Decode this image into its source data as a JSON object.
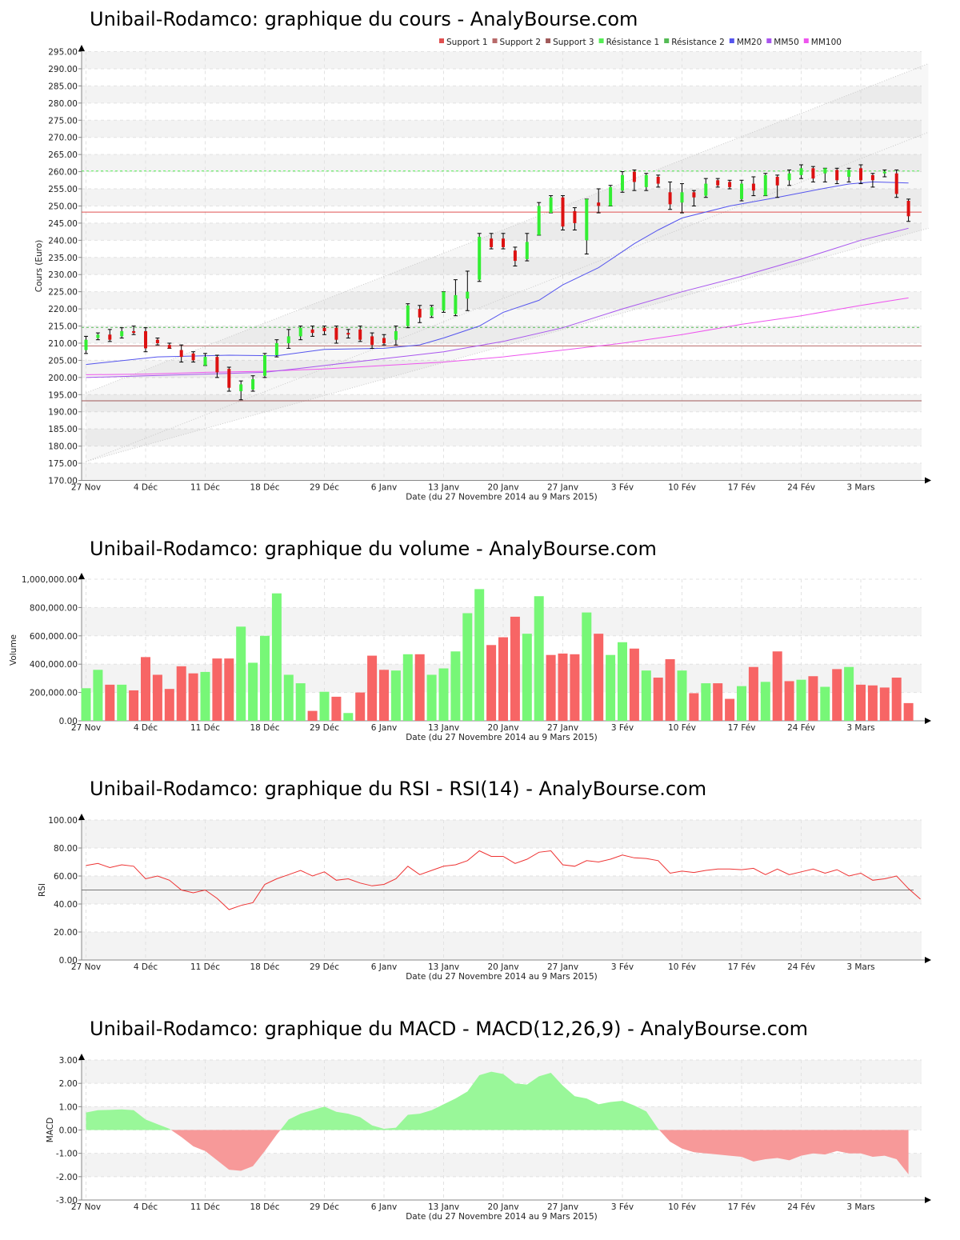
{
  "chart_data": [
    {
      "type": "candlestick",
      "title": "Unibail-Rodamco: graphique du cours - AnalyBourse.com",
      "xlabel": "Date (du 27 Novembre 2014 au 9 Mars 2015)",
      "ylabel": "Cours (Euro)",
      "ylim": [
        170,
        295
      ],
      "ystep": 5,
      "grid": true,
      "legend_position": "top-right",
      "x_ticks": [
        "27 Nov",
        "4 Déc",
        "11 Déc",
        "18 Déc",
        "29 Déc",
        "6 Janv",
        "13 Janv",
        "20 Janv",
        "27 Janv",
        "3 Fév",
        "10 Fév",
        "17 Fév",
        "24 Fév",
        "3 Mars"
      ],
      "x_tick_index": [
        0,
        5,
        10,
        15,
        20,
        25,
        30,
        35,
        40,
        45,
        50,
        55,
        60,
        65
      ],
      "legend": [
        {
          "label": "Support 1",
          "color": "#e05050"
        },
        {
          "label": "Support 2",
          "color": "#b86a6a"
        },
        {
          "label": "Support 3",
          "color": "#a05a5a"
        },
        {
          "label": "Résistance 1",
          "color": "#55ee55"
        },
        {
          "label": "Résistance 2",
          "color": "#55bb55"
        },
        {
          "label": "MM20",
          "color": "#5555ee"
        },
        {
          "label": "MM50",
          "color": "#a855ee"
        },
        {
          "label": "MM100",
          "color": "#ee55ee"
        }
      ],
      "levels": {
        "support1": 248.2,
        "support2": 209.2,
        "support3": 193.2,
        "resistance1": 260.2,
        "resistance2": 214.6
      },
      "colors": {
        "up": "#33ee33",
        "down": "#dd1111",
        "support1": "#e05050",
        "support2": "#b86a6a",
        "support3": "#a05a5a",
        "resistance1": "#55ee55",
        "resistance2": "#55bb55",
        "mm20": "#5555ee",
        "mm50": "#a855ee",
        "mm100": "#ee55ee",
        "channel": "#c8c8c8"
      },
      "channel": {
        "lower": [
          175.5,
          243.5
        ],
        "upper": [
          195.5,
          291.5
        ],
        "mid_upper": [
          175.5,
          271.5
        ]
      },
      "candles": [
        {
          "o": 208,
          "h": 212,
          "l": 207,
          "c": 211
        },
        {
          "o": 211.5,
          "h": 213,
          "l": 211,
          "c": 212.5
        },
        {
          "o": 212.5,
          "h": 214,
          "l": 210.5,
          "c": 211
        },
        {
          "o": 212,
          "h": 214.5,
          "l": 211.5,
          "c": 213.5
        },
        {
          "o": 213.5,
          "h": 215,
          "l": 212.5,
          "c": 213
        },
        {
          "o": 213.5,
          "h": 214.5,
          "l": 207.5,
          "c": 208.5
        },
        {
          "o": 211,
          "h": 211.5,
          "l": 209.5,
          "c": 210
        },
        {
          "o": 209.5,
          "h": 210,
          "l": 208.5,
          "c": 208.5
        },
        {
          "o": 208,
          "h": 209.5,
          "l": 204.5,
          "c": 206
        },
        {
          "o": 207,
          "h": 207.5,
          "l": 204.5,
          "c": 205
        },
        {
          "o": 203.5,
          "h": 207,
          "l": 203.5,
          "c": 206
        },
        {
          "o": 206,
          "h": 206.5,
          "l": 200,
          "c": 201.5
        },
        {
          "o": 202.5,
          "h": 203,
          "l": 196,
          "c": 197
        },
        {
          "o": 196,
          "h": 199,
          "l": 193.5,
          "c": 198
        },
        {
          "o": 196.5,
          "h": 200.5,
          "l": 196,
          "c": 199.5
        },
        {
          "o": 200.5,
          "h": 207,
          "l": 200,
          "c": 206.5
        },
        {
          "o": 206.5,
          "h": 211,
          "l": 206,
          "c": 210
        },
        {
          "o": 210,
          "h": 214,
          "l": 208.5,
          "c": 212
        },
        {
          "o": 212,
          "h": 215,
          "l": 211,
          "c": 214.5
        },
        {
          "o": 214,
          "h": 215,
          "l": 212,
          "c": 213
        },
        {
          "o": 214.5,
          "h": 215,
          "l": 212.5,
          "c": 213.5
        },
        {
          "o": 214.5,
          "h": 215,
          "l": 210,
          "c": 211
        },
        {
          "o": 213,
          "h": 214,
          "l": 211.5,
          "c": 212.5
        },
        {
          "o": 214,
          "h": 215,
          "l": 210.5,
          "c": 211
        },
        {
          "o": 212,
          "h": 213,
          "l": 208.5,
          "c": 209.5
        },
        {
          "o": 211.5,
          "h": 212.5,
          "l": 209.5,
          "c": 210
        },
        {
          "o": 211,
          "h": 215,
          "l": 209.5,
          "c": 213.5
        },
        {
          "o": 215,
          "h": 221.5,
          "l": 214.5,
          "c": 221
        },
        {
          "o": 220,
          "h": 221,
          "l": 216,
          "c": 217.5
        },
        {
          "o": 218,
          "h": 221,
          "l": 217.5,
          "c": 220.5
        },
        {
          "o": 219.5,
          "h": 225,
          "l": 219,
          "c": 225
        },
        {
          "o": 218.5,
          "h": 228.5,
          "l": 218,
          "c": 224
        },
        {
          "o": 223,
          "h": 231,
          "l": 219.5,
          "c": 225
        },
        {
          "o": 228.5,
          "h": 242,
          "l": 228,
          "c": 241
        },
        {
          "o": 240.5,
          "h": 242,
          "l": 237.5,
          "c": 238
        },
        {
          "o": 240.5,
          "h": 242,
          "l": 237.5,
          "c": 238
        },
        {
          "o": 237,
          "h": 238,
          "l": 232.5,
          "c": 234
        },
        {
          "o": 234.5,
          "h": 242,
          "l": 234,
          "c": 239.5
        },
        {
          "o": 241.5,
          "h": 251,
          "l": 241.5,
          "c": 250
        },
        {
          "o": 248,
          "h": 253,
          "l": 248,
          "c": 252.5
        },
        {
          "o": 252.5,
          "h": 253,
          "l": 243,
          "c": 244
        },
        {
          "o": 248.5,
          "h": 249.5,
          "l": 243,
          "c": 245
        },
        {
          "o": 240,
          "h": 252,
          "l": 236,
          "c": 252
        },
        {
          "o": 251,
          "h": 255,
          "l": 248,
          "c": 250
        },
        {
          "o": 250,
          "h": 256,
          "l": 250,
          "c": 255.5
        },
        {
          "o": 254.5,
          "h": 260,
          "l": 254,
          "c": 259
        },
        {
          "o": 260,
          "h": 260.5,
          "l": 254.5,
          "c": 257
        },
        {
          "o": 255.5,
          "h": 259.5,
          "l": 254.5,
          "c": 259
        },
        {
          "o": 258.5,
          "h": 259,
          "l": 255.5,
          "c": 256.5
        },
        {
          "o": 254,
          "h": 257,
          "l": 249,
          "c": 250.5
        },
        {
          "o": 251,
          "h": 256.5,
          "l": 248,
          "c": 254
        },
        {
          "o": 254,
          "h": 254.5,
          "l": 250,
          "c": 252.5
        },
        {
          "o": 253,
          "h": 258,
          "l": 252.5,
          "c": 256.5
        },
        {
          "o": 257.5,
          "h": 258,
          "l": 255.5,
          "c": 256
        },
        {
          "o": 257,
          "h": 257.5,
          "l": 255,
          "c": 255.5
        },
        {
          "o": 252,
          "h": 257.5,
          "l": 251.5,
          "c": 256.5
        },
        {
          "o": 256.5,
          "h": 258.5,
          "l": 253,
          "c": 254.5
        },
        {
          "o": 253,
          "h": 259.5,
          "l": 253,
          "c": 259
        },
        {
          "o": 258.5,
          "h": 259,
          "l": 252.5,
          "c": 256
        },
        {
          "o": 257.5,
          "h": 260.5,
          "l": 256,
          "c": 259.5
        },
        {
          "o": 259,
          "h": 262,
          "l": 258,
          "c": 261
        },
        {
          "o": 261,
          "h": 261.5,
          "l": 257,
          "c": 258
        },
        {
          "o": 259.5,
          "h": 261,
          "l": 257,
          "c": 261
        },
        {
          "o": 260.5,
          "h": 261,
          "l": 256.5,
          "c": 257.5
        },
        {
          "o": 258.5,
          "h": 261,
          "l": 257,
          "c": 260.5
        },
        {
          "o": 261,
          "h": 262,
          "l": 256.5,
          "c": 257.5
        },
        {
          "o": 259,
          "h": 259.5,
          "l": 255.5,
          "c": 257.5
        },
        {
          "o": 259.5,
          "h": 260.5,
          "l": 258.5,
          "c": 260
        },
        {
          "o": 259.5,
          "h": 260.5,
          "l": 252.5,
          "c": 253.5
        },
        {
          "o": 251.5,
          "h": 252,
          "l": 245.5,
          "c": 247
        }
      ],
      "mm20": [
        [
          0,
          203.8
        ],
        [
          6,
          206
        ],
        [
          12,
          206.5
        ],
        [
          16,
          206.3
        ],
        [
          20,
          208.2
        ],
        [
          25,
          208.5
        ],
        [
          28,
          209.5
        ],
        [
          30,
          211.5
        ],
        [
          33,
          215
        ],
        [
          35,
          219
        ],
        [
          38,
          222.5
        ],
        [
          40,
          227
        ],
        [
          43,
          232
        ],
        [
          46,
          239
        ],
        [
          48,
          243
        ],
        [
          50,
          246.5
        ],
        [
          54,
          250
        ],
        [
          58,
          252.5
        ],
        [
          62,
          255.2
        ],
        [
          64,
          256.4
        ],
        [
          66,
          257
        ],
        [
          68,
          256.8
        ],
        [
          69,
          256.7
        ]
      ],
      "mm50": [
        [
          0,
          200
        ],
        [
          5,
          200.5
        ],
        [
          10,
          201
        ],
        [
          15,
          201.5
        ],
        [
          20,
          203.5
        ],
        [
          25,
          205.5
        ],
        [
          30,
          207.5
        ],
        [
          35,
          210.5
        ],
        [
          40,
          214.5
        ],
        [
          45,
          220
        ],
        [
          50,
          225
        ],
        [
          55,
          229.5
        ],
        [
          60,
          234.5
        ],
        [
          65,
          240
        ],
        [
          69,
          243.5
        ]
      ],
      "mm100": [
        [
          0,
          200.8
        ],
        [
          5,
          201
        ],
        [
          10,
          201.5
        ],
        [
          15,
          201.8
        ],
        [
          20,
          202.5
        ],
        [
          25,
          203.5
        ],
        [
          30,
          204.5
        ],
        [
          35,
          206
        ],
        [
          40,
          208
        ],
        [
          45,
          210
        ],
        [
          50,
          212.5
        ],
        [
          55,
          215.5
        ],
        [
          60,
          218
        ],
        [
          65,
          221
        ],
        [
          69,
          223.2
        ]
      ]
    },
    {
      "type": "bar",
      "title": "Unibail-Rodamco: graphique du volume - AnalyBourse.com",
      "xlabel": "Date (du 27 Novembre 2014 au 9 Mars 2015)",
      "ylabel": "Volume",
      "ylim": [
        0,
        1000000
      ],
      "y_ticks": [
        "0.00",
        "200,000.00",
        "400,000.00",
        "600,000.00",
        "800,000.00",
        "1,000,000.00"
      ],
      "x_ticks": [
        "27 Nov",
        "4 Déc",
        "11 Déc",
        "18 Déc",
        "29 Déc",
        "6 Janv",
        "13 Janv",
        "20 Janv",
        "27 Janv",
        "3 Fév",
        "10 Fév",
        "17 Fév",
        "24 Fév",
        "3 Mars"
      ],
      "x_tick_index": [
        0,
        5,
        10,
        15,
        20,
        25,
        30,
        35,
        40,
        45,
        50,
        55,
        60,
        65
      ],
      "colors": {
        "up": "#77f777",
        "down": "#f76565"
      },
      "values": [
        230000,
        360000,
        255000,
        255000,
        215000,
        450000,
        325000,
        225000,
        385000,
        335000,
        345000,
        440000,
        440000,
        665000,
        410000,
        600000,
        900000,
        325000,
        265000,
        70000,
        205000,
        170000,
        55000,
        200000,
        460000,
        360000,
        355000,
        470000,
        470000,
        325000,
        370000,
        490000,
        760000,
        930000,
        535000,
        590000,
        735000,
        615000,
        880000,
        465000,
        475000,
        470000,
        765000,
        615000,
        465000,
        555000,
        510000,
        355000,
        305000,
        435000,
        355000,
        195000,
        265000,
        265000,
        155000,
        245000,
        380000,
        275000,
        490000,
        280000,
        290000,
        315000,
        240000,
        365000,
        380000,
        255000,
        250000,
        235000,
        305000,
        125000
      ],
      "up": [
        1,
        1,
        0,
        1,
        0,
        0,
        0,
        0,
        0,
        0,
        1,
        0,
        0,
        1,
        1,
        1,
        1,
        1,
        1,
        0,
        1,
        0,
        1,
        0,
        0,
        0,
        1,
        1,
        0,
        1,
        1,
        1,
        1,
        1,
        0,
        0,
        0,
        1,
        1,
        0,
        0,
        0,
        1,
        0,
        1,
        1,
        0,
        1,
        0,
        0,
        1,
        0,
        1,
        0,
        0,
        1,
        0,
        1,
        0,
        0,
        1,
        0,
        1,
        0,
        1,
        0,
        0,
        0,
        0,
        0
      ]
    },
    {
      "type": "line",
      "title": "Unibail-Rodamco: graphique du RSI - RSI(14) - AnalyBourse.com",
      "xlabel": "Date (du 27 Novembre 2014 au 9 Mars 2015)",
      "ylabel": "RSI",
      "ylim": [
        0,
        100
      ],
      "y_ticks": [
        "0.00",
        "20.00",
        "40.00",
        "60.00",
        "80.00",
        "100.00"
      ],
      "x_ticks": [
        "27 Nov",
        "4 Déc",
        "11 Déc",
        "18 Déc",
        "29 Déc",
        "6 Janv",
        "13 Janv",
        "20 Janv",
        "27 Janv",
        "3 Fév",
        "10 Fév",
        "17 Fév",
        "24 Fév",
        "3 Mars"
      ],
      "x_tick_index": [
        0,
        5,
        10,
        15,
        20,
        25,
        30,
        35,
        40,
        45,
        50,
        55,
        60,
        65
      ],
      "reference_line": 50,
      "colors": {
        "line": "#ee3333",
        "reference": "#777777"
      },
      "values": [
        67.5,
        69,
        66,
        68,
        67,
        58,
        60,
        57,
        50,
        48,
        50,
        44,
        36,
        39,
        41,
        54,
        58,
        61,
        64,
        60,
        63,
        57,
        58,
        55,
        53,
        54,
        58,
        67,
        61,
        64,
        67,
        68,
        71,
        78,
        74,
        74,
        69,
        72,
        77,
        78,
        68,
        67,
        71,
        70,
        72,
        75,
        73,
        72.5,
        71,
        62,
        63.5,
        62.5,
        64,
        65,
        65,
        64.5,
        65.5,
        61,
        65,
        61,
        63,
        65,
        62,
        64.5,
        60,
        62,
        57,
        58,
        60,
        51,
        43.5
      ]
    },
    {
      "type": "area",
      "title": "Unibail-Rodamco: graphique du MACD - MACD(12,26,9) - AnalyBourse.com",
      "xlabel": "Date (du 27 Novembre 2014 au 9 Mars 2015)",
      "ylabel": "MACD",
      "ylim": [
        -3,
        3
      ],
      "y_ticks": [
        "-3.00",
        "-2.00",
        "-1.00",
        "0.00",
        "1.00",
        "2.00",
        "3.00"
      ],
      "x_ticks": [
        "27 Nov",
        "4 Déc",
        "11 Déc",
        "18 Déc",
        "29 Déc",
        "6 Janv",
        "13 Janv",
        "20 Janv",
        "27 Janv",
        "3 Fév",
        "10 Fév",
        "17 Fév",
        "24 Fév",
        "3 Mars"
      ],
      "x_tick_index": [
        0,
        5,
        10,
        15,
        20,
        25,
        30,
        35,
        40,
        45,
        50,
        55,
        60,
        65
      ],
      "colors": {
        "positive": "#99f799",
        "negative": "#f79999"
      },
      "values": [
        0.75,
        0.85,
        0.86,
        0.88,
        0.85,
        0.45,
        0.25,
        0.05,
        -0.3,
        -0.7,
        -0.9,
        -1.3,
        -1.7,
        -1.75,
        -1.55,
        -0.9,
        -0.2,
        0.45,
        0.7,
        0.85,
        1.0,
        0.78,
        0.7,
        0.55,
        0.2,
        0.05,
        0.1,
        0.65,
        0.7,
        0.85,
        1.1,
        1.35,
        1.65,
        2.35,
        2.5,
        2.4,
        2.0,
        1.95,
        2.3,
        2.45,
        1.9,
        1.45,
        1.35,
        1.1,
        1.2,
        1.25,
        1.05,
        0.8,
        0.05,
        -0.5,
        -0.8,
        -0.95,
        -1.0,
        -1.05,
        -1.1,
        -1.15,
        -1.35,
        -1.25,
        -1.2,
        -1.3,
        -1.1,
        -1.0,
        -1.05,
        -0.9,
        -1.0,
        -1.0,
        -1.15,
        -1.1,
        -1.25,
        -1.9
      ]
    }
  ]
}
